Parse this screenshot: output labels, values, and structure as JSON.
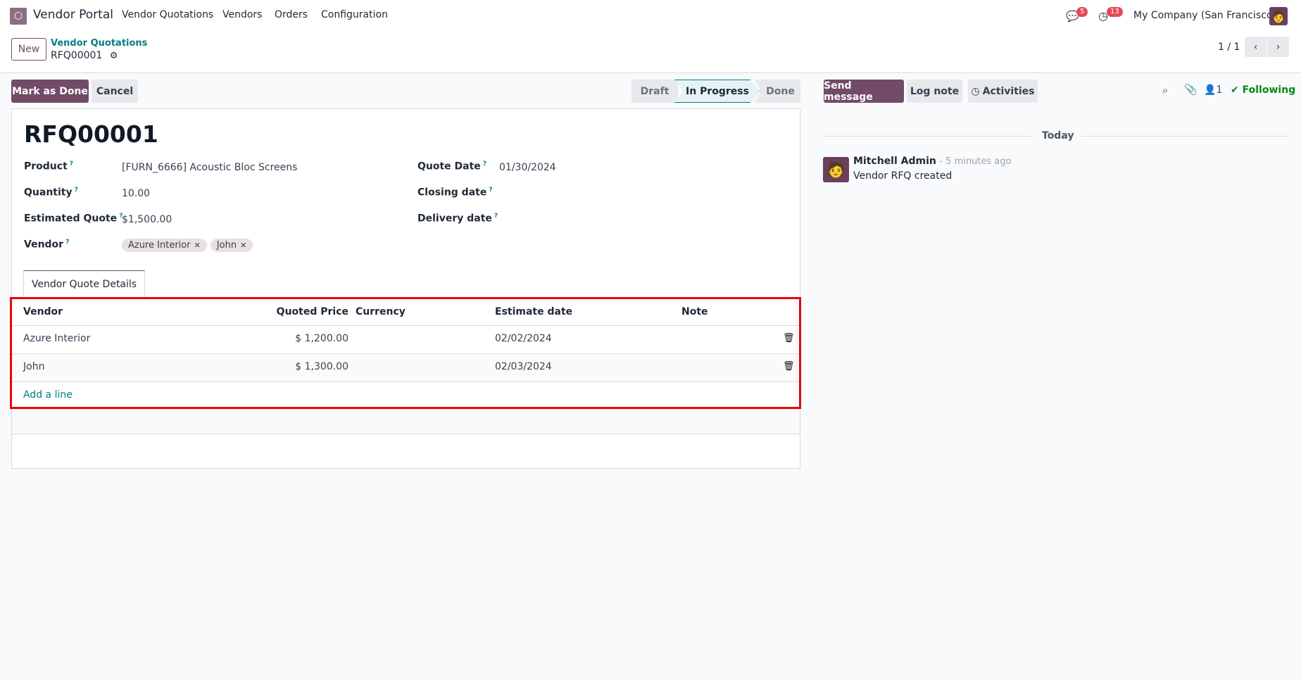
{
  "navbar": {
    "app_name": "Vendor Portal",
    "menus": [
      "Vendor Quotations",
      "Vendors",
      "Orders",
      "Configuration"
    ],
    "messages_count": "5",
    "activities_count": "13",
    "company": "My Company (San Francisco)"
  },
  "control_panel": {
    "new_label": "New",
    "breadcrumb_parent": "Vendor Quotations",
    "breadcrumb_current": "RFQ00001",
    "pager": "1 / 1"
  },
  "actions": {
    "mark_done": "Mark as Done",
    "cancel": "Cancel"
  },
  "statusbar": {
    "stages": [
      "Draft",
      "In Progress",
      "Done"
    ],
    "active": "In Progress"
  },
  "form": {
    "title": "RFQ00001",
    "fields": {
      "product": {
        "label": "Product",
        "value": "[FURN_6666] Acoustic Bloc Screens"
      },
      "quantity": {
        "label": "Quantity",
        "value": "10.00"
      },
      "estimated_quote": {
        "label": "Estimated Quote",
        "value": "$1,500.00"
      },
      "vendor": {
        "label": "Vendor",
        "tags": [
          "Azure Interior",
          "John"
        ]
      },
      "quote_date": {
        "label": "Quote Date",
        "value": "01/30/2024"
      },
      "closing_date": {
        "label": "Closing date",
        "value": ""
      },
      "delivery_date": {
        "label": "Delivery date",
        "value": ""
      }
    },
    "help_mark": "?",
    "tab": "Vendor Quote Details",
    "table": {
      "headers": [
        "Vendor",
        "Quoted Price",
        "Currency",
        "Estimate date",
        "Note"
      ],
      "rows": [
        {
          "vendor": "Azure Interior",
          "price": "$ 1,200.00",
          "currency": "",
          "date": "02/02/2024",
          "note": ""
        },
        {
          "vendor": "John",
          "price": "$ 1,300.00",
          "currency": "",
          "date": "02/03/2024",
          "note": ""
        }
      ],
      "add_line": "Add a line"
    }
  },
  "chatter": {
    "send_message": "Send message",
    "log_note": "Log note",
    "activities": "Activities",
    "followers_count": "1",
    "following": "Following",
    "date_separator": "Today",
    "messages": [
      {
        "author": "Mitchell Admin",
        "time": "- 5 minutes ago",
        "body": "Vendor RFQ created"
      }
    ]
  },
  "colors": {
    "primary": "#714B67",
    "link": "#017E84",
    "highlight": "#E8000B",
    "following": "#008818",
    "badge": "#E4485A"
  }
}
